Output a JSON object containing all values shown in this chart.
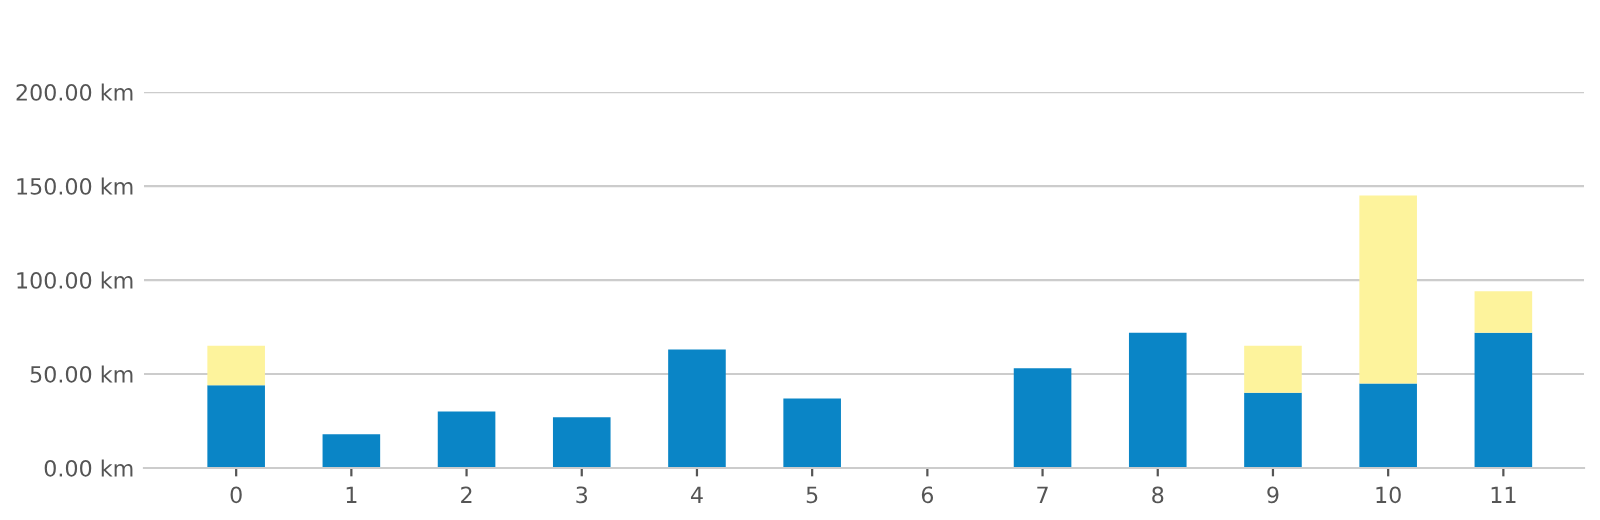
{
  "chart_data": {
    "type": "bar",
    "stacked": true,
    "categories": [
      "0",
      "1",
      "2",
      "3",
      "4",
      "5",
      "6",
      "7",
      "8",
      "9",
      "10",
      "11"
    ],
    "series": [
      {
        "color": "#0a85c6",
        "values": [
          44,
          18,
          30,
          27,
          63,
          37,
          null,
          53,
          72,
          40,
          45,
          72
        ]
      },
      {
        "color": "#fdf39c",
        "values": [
          21,
          null,
          null,
          null,
          null,
          null,
          null,
          null,
          null,
          25,
          100,
          22
        ]
      }
    ],
    "ylim": [
      0,
      200
    ],
    "yticks": [
      {
        "value": 0,
        "label": "0.00 km"
      },
      {
        "value": 50,
        "label": "50.00 km"
      },
      {
        "value": 100,
        "label": "100.00 km"
      },
      {
        "value": 150,
        "label": "150.00 km"
      },
      {
        "value": 200,
        "label": "200.00 km"
      }
    ],
    "grid": "y",
    "legend": false
  }
}
